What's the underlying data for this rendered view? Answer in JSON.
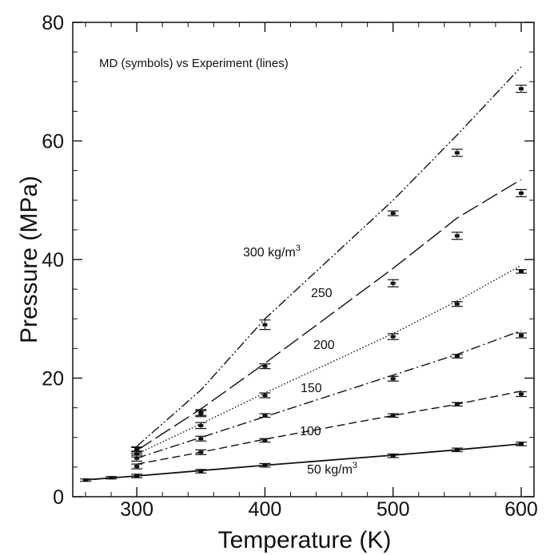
{
  "chart_data": {
    "type": "line",
    "title": "MD (symbols) vs Experiment (lines)",
    "xlabel": "Temperature (K)",
    "ylabel": "Pressure (MPa)",
    "xlim": [
      250,
      610
    ],
    "ylim": [
      0,
      80
    ],
    "xticks": [
      300,
      400,
      500,
      600
    ],
    "yticks": [
      0,
      20,
      40,
      60,
      80
    ],
    "x_minor_step": 20,
    "y_minor_step": 5,
    "grid": false,
    "legend": "none",
    "series": [
      {
        "label": "50 kg/m³",
        "dash": "solid",
        "line": {
          "x": [
            258,
            300,
            350,
            400,
            500,
            550,
            600
          ],
          "y": [
            2.8,
            3.5,
            4.4,
            5.3,
            7.0,
            7.9,
            8.9
          ]
        },
        "md": {
          "x": [
            260,
            280,
            300,
            350,
            400,
            500,
            550,
            600
          ],
          "y": [
            2.8,
            3.2,
            3.5,
            4.3,
            5.3,
            6.9,
            7.9,
            8.9
          ],
          "err": [
            0.2,
            0.2,
            0.3,
            0.3,
            0.3,
            0.3,
            0.3,
            0.3
          ]
        }
      },
      {
        "label": "100",
        "dash": "dash",
        "line": {
          "x": [
            300,
            350,
            400,
            500,
            550,
            600
          ],
          "y": [
            5.5,
            7.5,
            9.7,
            13.7,
            15.6,
            17.8
          ]
        },
        "md": {
          "x": [
            300,
            350,
            400,
            500,
            550,
            600
          ],
          "y": [
            5.1,
            7.5,
            9.5,
            13.7,
            15.6,
            17.3
          ],
          "err": [
            0.4,
            0.4,
            0.3,
            0.3,
            0.3,
            0.4
          ]
        }
      },
      {
        "label": "150",
        "dash": "dashdot",
        "line": {
          "x": [
            300,
            350,
            400,
            500,
            550,
            600
          ],
          "y": [
            6.5,
            10.0,
            13.5,
            20.5,
            24.0,
            28.0
          ]
        },
        "md": {
          "x": [
            300,
            350,
            400,
            500,
            550,
            600
          ],
          "y": [
            6.5,
            9.8,
            13.7,
            19.9,
            23.7,
            27.2
          ],
          "err": [
            0.5,
            0.4,
            0.3,
            0.4,
            0.3,
            0.4
          ]
        }
      },
      {
        "label": "200",
        "dash": "dot",
        "line": {
          "x": [
            300,
            350,
            400,
            500,
            550,
            600
          ],
          "y": [
            7.2,
            12.3,
            17.5,
            27.5,
            33.0,
            39.0
          ]
        },
        "md": {
          "x": [
            300,
            350,
            400,
            500,
            550,
            600
          ],
          "y": [
            7.2,
            12.0,
            17.1,
            27.0,
            32.5,
            38.0
          ],
          "err": [
            0.5,
            0.5,
            0.4,
            0.5,
            0.4,
            0.3
          ]
        }
      },
      {
        "label": "250",
        "dash": "longdash",
        "line": {
          "x": [
            300,
            350,
            400,
            500,
            550,
            600
          ],
          "y": [
            7.8,
            14.8,
            22.5,
            38.5,
            47.0,
            53.5
          ]
        },
        "md": {
          "x": [
            300,
            350,
            400,
            500,
            550,
            600
          ],
          "y": [
            7.8,
            14.2,
            22.0,
            36.0,
            44.0,
            51.2
          ],
          "err": [
            0.5,
            0.5,
            0.4,
            0.6,
            0.6,
            0.6
          ]
        }
      },
      {
        "label": "300 kg/m³",
        "dash": "dashdotdot",
        "line": {
          "x": [
            300,
            350,
            400,
            500,
            550,
            600
          ],
          "y": [
            8.5,
            18.0,
            30.0,
            50.0,
            61.0,
            72.5
          ]
        },
        "md": {
          "x": [
            300,
            350,
            400,
            500,
            550,
            600
          ],
          "y": [
            8.0,
            14.0,
            29.0,
            47.8,
            58.0,
            68.8
          ],
          "err": [
            0.4,
            0.5,
            0.8,
            0.4,
            0.6,
            0.6
          ]
        }
      }
    ]
  }
}
